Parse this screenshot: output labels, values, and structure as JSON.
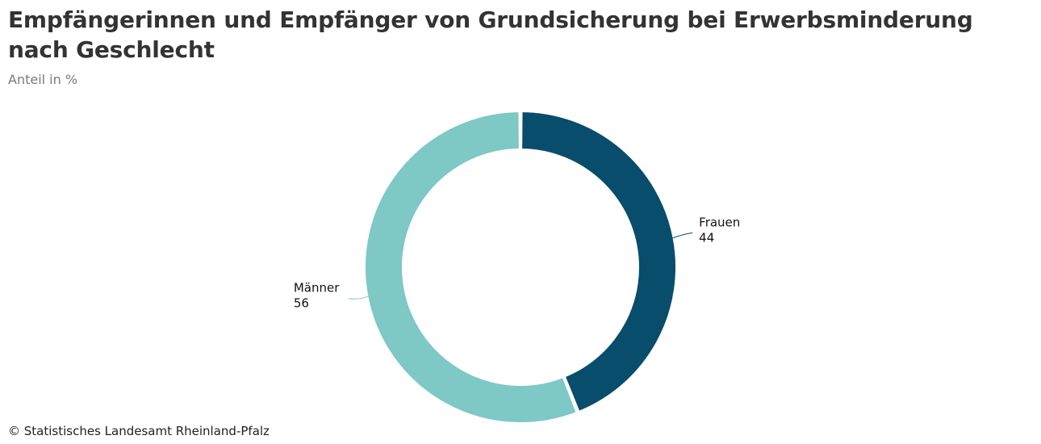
{
  "header": {
    "title": "Empfängerinnen und Empfänger von Grundsicherung bei Erwerbsminderung nach Geschlecht",
    "subtitle": "Anteil in %"
  },
  "footer": {
    "source": "© Statistisches Landesamt Rheinland-Pfalz"
  },
  "colors": {
    "frauen": "#084D6B",
    "maenner": "#7EC8C6"
  },
  "chart_data": {
    "type": "pie",
    "variant": "donut",
    "title": "Empfängerinnen und Empfänger von Grundsicherung bei Erwerbsminderung nach Geschlecht",
    "subtitle": "Anteil in %",
    "categories": [
      "Frauen",
      "Männer"
    ],
    "values": [
      44,
      56
    ],
    "series": [
      {
        "name": "Frauen",
        "value": 44,
        "color": "#084D6B"
      },
      {
        "name": "Männer",
        "value": 56,
        "color": "#7EC8C6"
      }
    ],
    "legend": "none",
    "labels": "outside"
  }
}
